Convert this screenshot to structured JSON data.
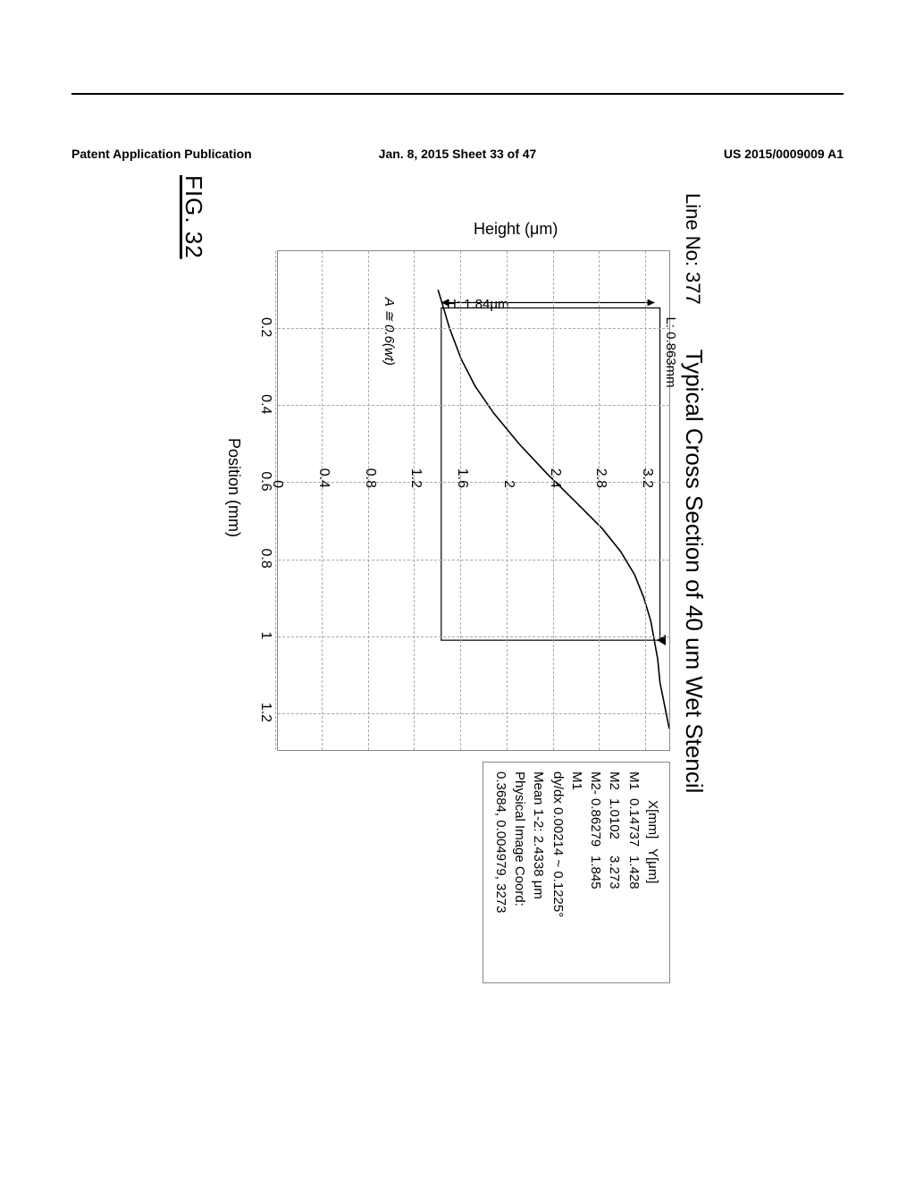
{
  "header": {
    "left": "Patent Application Publication",
    "mid": "Jan. 8, 2015  Sheet 33 of 47",
    "right": "US 2015/0009009 A1"
  },
  "figure_label": "FIG. 32",
  "chart": {
    "type": "line",
    "line_no_label": "Line No: 377",
    "title": "Typical Cross Section of 40 um Wet Stencil",
    "xlabel": "Position (mm)",
    "ylabel": "Height (μm)",
    "xlim": [
      0,
      1.3
    ],
    "ylim": [
      0,
      3.4
    ],
    "xticks": [
      0.2,
      0.4,
      0.6,
      0.8,
      1,
      1.2
    ],
    "yticks": [
      0,
      0.4,
      0.8,
      1.2,
      1.6,
      2.0,
      2.4,
      2.8,
      3.2
    ],
    "grid_color": "#aaaaaa",
    "curve_color": "#000000",
    "background_color": "#ffffff",
    "L_label": "L: 0.863mm",
    "H_label": "H: 1.84μm",
    "A_label": "A ≅ 0.6(wt)",
    "M1_x_mm": 0.14737,
    "M2_x_mm": 1.0102,
    "M1_y_um": 1.428,
    "M2_y_um": 3.273,
    "curve_points": [
      [
        0.1,
        1.4
      ],
      [
        0.14,
        1.44
      ],
      [
        0.2,
        1.5
      ],
      [
        0.28,
        1.6
      ],
      [
        0.35,
        1.72
      ],
      [
        0.42,
        1.88
      ],
      [
        0.5,
        2.1
      ],
      [
        0.58,
        2.35
      ],
      [
        0.66,
        2.62
      ],
      [
        0.72,
        2.82
      ],
      [
        0.78,
        2.98
      ],
      [
        0.84,
        3.1
      ],
      [
        0.9,
        3.18
      ],
      [
        0.96,
        3.24
      ],
      [
        1.01,
        3.27
      ],
      [
        1.06,
        3.3
      ],
      [
        1.12,
        3.32
      ],
      [
        1.18,
        3.36
      ],
      [
        1.24,
        3.4
      ]
    ]
  },
  "legend": {
    "head_x": "X[mm]",
    "head_y": "Y[μm]",
    "rows": [
      {
        "lbl": "M1",
        "x": "0.14737",
        "y": "1.428"
      },
      {
        "lbl": "M2",
        "x": "1.0102",
        "y": "3.273"
      },
      {
        "lbl": "M2-M1",
        "x": "0.86279",
        "y": "1.845"
      }
    ],
    "dydx": "dy/dx 0.00214 ~ 0.1225°",
    "mean": "Mean 1-2:  2.4338 μm",
    "coord_lbl": "Physical Image Coord:",
    "coord_val": "0.3684, 0.004979,  3273"
  }
}
